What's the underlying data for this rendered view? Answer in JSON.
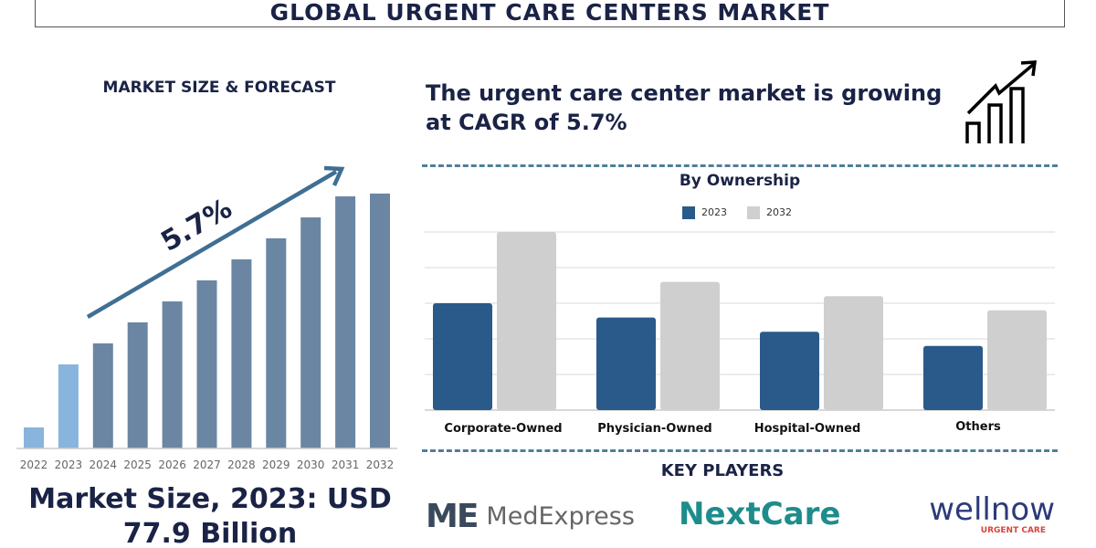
{
  "header": {
    "title": "GLOBAL URGENT CARE CENTERS MARKET"
  },
  "market_section": {
    "heading": "MARKET SIZE & FORECAST",
    "cagr_label": "5.7%",
    "market_size_line1": "Market Size, 2023: USD",
    "market_size_line2": "77.9 Billion"
  },
  "growth_section": {
    "text_line1": "The urgent care center market is growing",
    "text_line2": "at CAGR of 5.7%",
    "icon": "growth-chart-icon"
  },
  "key_players": {
    "heading": "KEY PLAYERS",
    "logos": [
      "MedExpress",
      "NextCare",
      "wellnow URGENT CARE"
    ]
  },
  "colors": {
    "navy": "#1a2346",
    "bar_forecast": "#6a86a3",
    "bar_light": "#88b4dd",
    "series_2023": "#2a5a8a",
    "series_2032": "#cfcfcf",
    "nextcare": "#1f8c8c",
    "wellnow_red": "#d9443a"
  },
  "chart_data": [
    {
      "type": "bar",
      "title": "MARKET SIZE & FORECAST",
      "categories": [
        "2022",
        "2023",
        "2024",
        "2025",
        "2026",
        "2027",
        "2028",
        "2029",
        "2030",
        "2031",
        "2032"
      ],
      "values": [
        19.5,
        77.9,
        97.4,
        116.9,
        136.3,
        155.8,
        175.3,
        194.8,
        214.2,
        233.7,
        236.3
      ],
      "highlighted": [
        "2022",
        "2023"
      ],
      "annotation": "5.7%",
      "grid": false
    },
    {
      "type": "bar",
      "title": "By Ownership",
      "categories": [
        "Corporate-Owned",
        "Physician-Owned",
        "Hospital-Owned",
        "Others"
      ],
      "series": [
        {
          "name": "2023",
          "values": [
            3.0,
            2.6,
            2.2,
            1.8
          ]
        },
        {
          "name": "2032",
          "values": [
            5.0,
            3.6,
            3.2,
            2.8
          ]
        }
      ],
      "ylim": [
        0,
        5
      ],
      "grid": true,
      "legend": "top-center"
    }
  ]
}
